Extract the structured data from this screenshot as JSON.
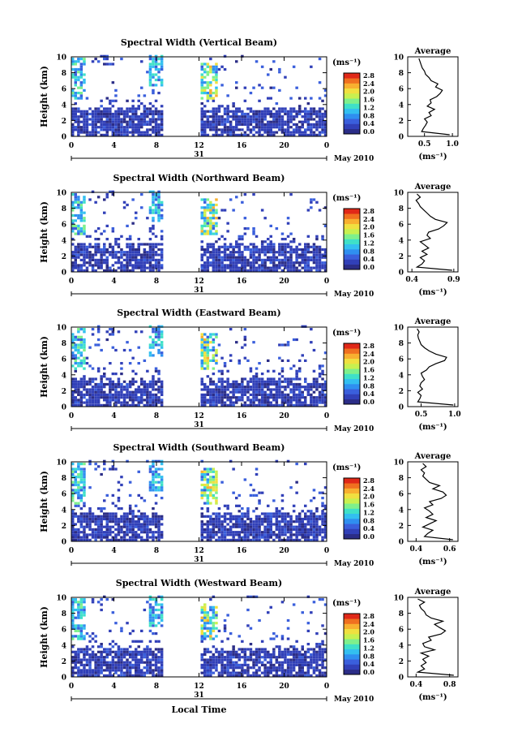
{
  "figure": {
    "xlabel": "Local Time",
    "date_label": "May 2010",
    "day_label": "31",
    "avg_title": "Average",
    "avg_unit": "(ms⁻¹)",
    "cbar_unit": "(ms⁻¹)",
    "ylabel": "Height (km)",
    "x_ticks": [
      "0",
      "4",
      "8",
      "12",
      "16",
      "20",
      "0"
    ],
    "y_ticks": [
      "0",
      "2",
      "4",
      "6",
      "8",
      "10"
    ],
    "cbar_ticks": [
      "0.0",
      "0.4",
      "0.8",
      "1.2",
      "1.6",
      "2.0",
      "2.4",
      "2.8"
    ],
    "colorscale": [
      "#2b2d87",
      "#3140b8",
      "#3a5fdc",
      "#2f8ff0",
      "#33bff0",
      "#3fe0c8",
      "#7ef08c",
      "#c8f050",
      "#f0e040",
      "#f8b030",
      "#f07020",
      "#e02818"
    ],
    "panels": [
      {
        "title": "Spectral Width (Vertical Beam)",
        "avg_xticks": [
          "0.5",
          "1.0"
        ],
        "avg_xlim": [
          0.2,
          1.1
        ],
        "base": 0.45
      },
      {
        "title": "Spectral Width (Northward Beam)",
        "avg_xticks": [
          "0.4",
          "0.9"
        ],
        "avg_xlim": [
          0.35,
          0.95
        ],
        "base": 0.48
      },
      {
        "title": "Spectral Width (Eastward Beam)",
        "avg_xticks": [
          "0.5",
          "1.0"
        ],
        "avg_xlim": [
          0.3,
          1.05
        ],
        "base": 0.45
      },
      {
        "title": "Spectral Width (Southward Beam)",
        "avg_xticks": [
          "0.4",
          "0.6"
        ],
        "avg_xlim": [
          0.35,
          0.65
        ],
        "base": 0.42
      },
      {
        "title": "Spectral Width (Westward Beam)",
        "avg_xticks": [
          "0.4",
          "0.8"
        ],
        "avg_xlim": [
          0.3,
          0.9
        ],
        "base": 0.44
      }
    ]
  },
  "chart_data": {
    "type": "heatmap",
    "x_range_hours": [
      0,
      24
    ],
    "y_range_km": [
      0,
      10
    ],
    "data_gap_hours": [
      8.6,
      11.9
    ],
    "colorbar_range": [
      0.0,
      2.8
    ],
    "avg_profile_heights_km": [
      0.2,
      0.6,
      1.0,
      1.4,
      1.8,
      2.2,
      2.6,
      3.0,
      3.4,
      3.8,
      4.2,
      4.6,
      5.0,
      5.4,
      5.8,
      6.2,
      6.6,
      7.0,
      7.4,
      7.8,
      8.2,
      8.6,
      9.0,
      9.4,
      9.8
    ],
    "avg_profiles": [
      [
        0.95,
        0.45,
        0.48,
        0.52,
        0.55,
        0.5,
        0.62,
        0.58,
        0.68,
        0.55,
        0.62,
        0.6,
        0.72,
        0.78,
        0.82,
        0.7,
        0.74,
        0.62,
        0.58,
        0.52,
        0.5,
        0.46,
        0.44,
        0.42,
        0.4
      ],
      [
        0.88,
        0.46,
        0.52,
        0.55,
        0.5,
        0.58,
        0.52,
        0.6,
        0.55,
        0.5,
        0.62,
        0.58,
        0.6,
        0.72,
        0.78,
        0.82,
        0.68,
        0.62,
        0.58,
        0.54,
        0.5,
        0.48,
        0.45,
        0.5,
        0.46
      ],
      [
        0.98,
        0.45,
        0.48,
        0.5,
        0.45,
        0.52,
        0.48,
        0.5,
        0.55,
        0.52,
        0.5,
        0.58,
        0.62,
        0.72,
        0.85,
        0.88,
        0.72,
        0.62,
        0.55,
        0.5,
        0.48,
        0.46,
        0.45,
        0.47,
        0.44
      ],
      [
        0.62,
        0.45,
        0.47,
        0.5,
        0.44,
        0.48,
        0.52,
        0.46,
        0.5,
        0.48,
        0.45,
        0.5,
        0.48,
        0.55,
        0.58,
        0.56,
        0.5,
        0.54,
        0.48,
        0.46,
        0.44,
        0.45,
        0.43,
        0.46,
        0.44
      ],
      [
        0.85,
        0.42,
        0.5,
        0.46,
        0.52,
        0.48,
        0.55,
        0.46,
        0.62,
        0.5,
        0.48,
        0.58,
        0.55,
        0.7,
        0.75,
        0.68,
        0.62,
        0.72,
        0.58,
        0.52,
        0.5,
        0.46,
        0.44,
        0.5,
        0.42
      ]
    ]
  }
}
